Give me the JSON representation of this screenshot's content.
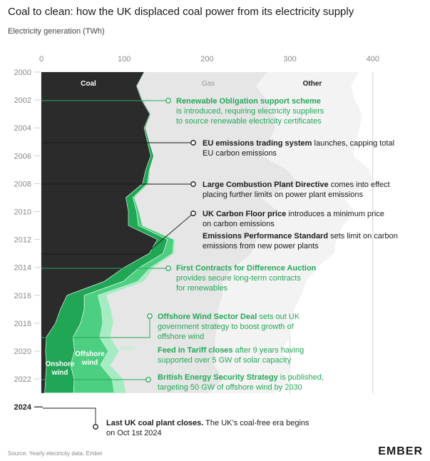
{
  "title": "Coal to clean: how the UK displaced coal power from its electricity supply",
  "subtitle": "Electricity generation (TWh)",
  "source": "Source: Yearly electricity data, Ember",
  "brand": "EMBER",
  "colors": {
    "coal": "#2b2b2b",
    "gas": "#e6e6e6",
    "other": "#f3f3f3",
    "onshore": "#21a655",
    "offshore": "#4ccf80",
    "solar": "#a6ecc3",
    "accent_green": "#23a858",
    "axis_text": "#888888"
  },
  "chart_data": {
    "type": "area",
    "orientation": "horizontal",
    "ylabel": "",
    "xlabel": "Electricity generation (TWh)",
    "xlim": [
      0,
      400
    ],
    "x_ticks": [
      0,
      100,
      200,
      300,
      400
    ],
    "years": [
      2000,
      2001,
      2002,
      2003,
      2004,
      2005,
      2006,
      2007,
      2008,
      2009,
      2010,
      2011,
      2012,
      2013,
      2014,
      2015,
      2016,
      2017,
      2018,
      2019,
      2020,
      2021,
      2022,
      2023
    ],
    "year_tick_labels": [
      "2000",
      "2002",
      "2004",
      "2006",
      "2008",
      "2010",
      "2012",
      "2014",
      "2016",
      "2018",
      "2020",
      "2022",
      "2024"
    ],
    "series": [
      {
        "name": "Coal",
        "key": "coal",
        "values": [
          124,
          115,
          121,
          131,
          124,
          128,
          132,
          126,
          122,
          102,
          105,
          105,
          140,
          130,
          100,
          76,
          31,
          23,
          17,
          6,
          5,
          6,
          5,
          4
        ]
      },
      {
        "name": "Onshore wind",
        "key": "onshore",
        "values": [
          0.9,
          0.9,
          1.2,
          1.1,
          1.7,
          2.5,
          3.6,
          4.5,
          6,
          8.6,
          10,
          12,
          12.2,
          16.9,
          18.6,
          22.9,
          20.8,
          28.7,
          30.4,
          32.3,
          35.0,
          29.4,
          34.7,
          35
        ]
      },
      {
        "name": "Offshore wind",
        "key": "offshore",
        "values": [
          0,
          0,
          0,
          0.01,
          0.2,
          0.4,
          0.7,
          0.8,
          1.3,
          1.8,
          3,
          5,
          7.6,
          11.5,
          13.4,
          17.4,
          16.4,
          20.9,
          26.5,
          31.9,
          40.7,
          35.9,
          45.7,
          49
        ]
      },
      {
        "name": "Solar",
        "key": "solar",
        "values": [
          0,
          0,
          0,
          0,
          0,
          0,
          0,
          0,
          0,
          0,
          0,
          0.2,
          1.2,
          2,
          4,
          7.5,
          10.4,
          11.5,
          12.9,
          12.7,
          13.2,
          12.1,
          13.3,
          14
        ]
      },
      {
        "name": "Gas",
        "key": "gas",
        "values": [
          148,
          143,
          150,
          148,
          156,
          144,
          130,
          165,
          182,
          153,
          168,
          139,
          99,
          93,
          97,
          95,
          140,
          129,
          127,
          127,
          116,
          125,
          122,
          100
        ]
      },
      {
        "name": "Other",
        "key": "other",
        "values": [
          110,
          115,
          106,
          107,
          102,
          105,
          110,
          100,
          90,
          100,
          92,
          103,
          96,
          100,
          100,
          101,
          95,
          92,
          88,
          90,
          80,
          90,
          84,
          80
        ]
      }
    ],
    "annotations": [
      {
        "year": 2002,
        "bold": "Renewable Obligation support scheme",
        "text": "is introduced, requiring electricity suppliers to source renewable electricity certificates",
        "color": "green"
      },
      {
        "year": 2005,
        "bold": "EU emissions trading system",
        "text": "launches, capping total EU carbon emissions",
        "color": "dark"
      },
      {
        "year": 2008,
        "bold": "Large Combustion Plant Directive",
        "text": "comes into effect placing further limits on power plant emissions",
        "color": "dark"
      },
      {
        "year": 2013,
        "bold": "UK Carbon Floor price",
        "text": "introduces a minimum price on carbon emissions",
        "color": "dark"
      },
      {
        "year": 2013,
        "bold": "Emissions Performance Standard",
        "text": "sets limit on carbon emissions from new power plants",
        "color": "dark"
      },
      {
        "year": 2014,
        "bold": "First Contracts for Difference Auction",
        "text": "provides secure long-term contracts for renewables",
        "color": "green"
      },
      {
        "year": 2019,
        "bold": "Offshore Wind Sector Deal",
        "text": "sets out UK government strategy to boost growth of offshore wind",
        "color": "green"
      },
      {
        "year": 2019,
        "bold": "Feed in Tariff closes",
        "text": "after 9 years having supported over 5 GW of solar capacity",
        "color": "green"
      },
      {
        "year": 2022,
        "bold": "British Energy Security Strategy",
        "text": "is published, targeting  50 GW of offshore wind by 2030",
        "color": "green"
      },
      {
        "year": 2024,
        "bold": "Last UK coal plant closes.",
        "text": "The UK's coal-free era begins on Oct 1st 2024",
        "color": "dark"
      }
    ],
    "area_labels": {
      "coal": "Coal",
      "gas": "Gas",
      "other": "Other",
      "onshore": "Onshore wind",
      "offshore": "Offshore wind",
      "solar": "Solar"
    },
    "grid": true,
    "legend": "inline"
  }
}
